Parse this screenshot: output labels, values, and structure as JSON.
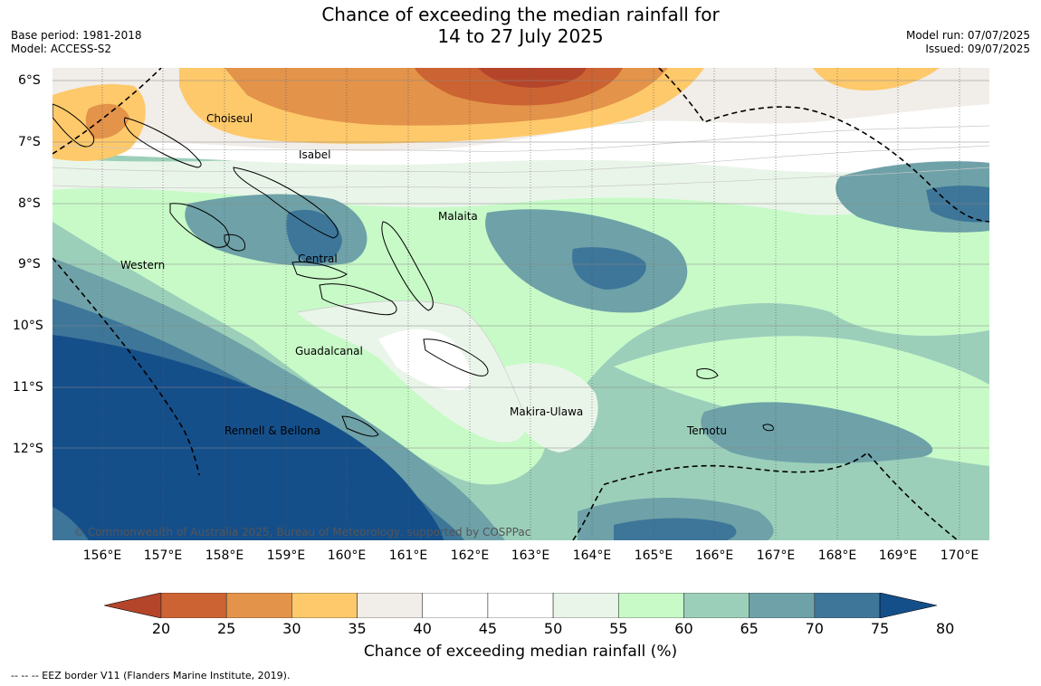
{
  "title_line1": "Chance of exceeding the median rainfall for",
  "title_line2": "14 to 27 July 2025",
  "base_period": "Base period: 1981-2018",
  "model": "Model: ACCESS-S2",
  "model_run": "Model run: 07/07/2025",
  "issued": "Issued: 09/07/2025",
  "lat_labels": [
    "6°S",
    "7°S",
    "8°S",
    "9°S",
    "10°S",
    "11°S",
    "12°S"
  ],
  "lon_labels": [
    "156°E",
    "157°E",
    "158°E",
    "159°E",
    "160°E",
    "161°E",
    "162°E",
    "163°E",
    "164°E",
    "165°E",
    "166°E",
    "167°E",
    "168°E",
    "169°E",
    "170°E"
  ],
  "regions": {
    "choiseul": "Choiseul",
    "isabel": "Isabel",
    "malaita": "Malaita",
    "western": "Western",
    "central": "Central",
    "guadalcanal": "Guadalcanal",
    "makira": "Makira-Ulawa",
    "rennell": "Rennell & Bellona",
    "temotu": "Temotu"
  },
  "copyright": "© Commonwealth of Australia 2025, Bureau of Meteorology, supported by COSPPac",
  "colorbar": {
    "title": "Chance of exceeding median rainfall (%)",
    "ticks": [
      "20",
      "25",
      "30",
      "35",
      "40",
      "45",
      "50",
      "55",
      "60",
      "65",
      "70",
      "75",
      "80"
    ],
    "colors": [
      "#b5452a",
      "#cc6332",
      "#e3934a",
      "#fec96a",
      "#f1ede8",
      "#ffffff",
      "#ffffff",
      "#eaf5ea",
      "#c8fac8",
      "#9ccfba",
      "#6ea2a8",
      "#3d7699",
      "#154f8a"
    ]
  },
  "footnote": "--  --  -- EEZ border V11 (Flanders Marine Institute, 2019)."
}
